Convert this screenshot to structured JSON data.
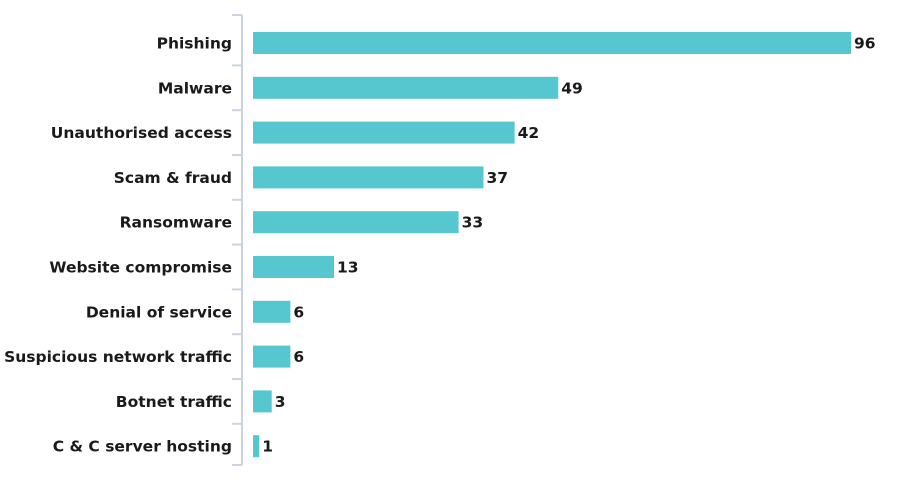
{
  "chart_data": {
    "type": "bar",
    "orientation": "horizontal",
    "title": "",
    "xlabel": "",
    "ylabel": "",
    "categories": [
      "Phishing",
      "Malware",
      "Unauthorised access",
      "Scam & fraud",
      "Ransomware",
      "Website compromise",
      "Denial of service",
      "Suspicious network traffic",
      "Botnet traffic",
      "C & C server hosting"
    ],
    "values": [
      96,
      49,
      42,
      37,
      33,
      13,
      6,
      6,
      3,
      1
    ],
    "xlim": [
      0,
      96
    ],
    "grid": false,
    "legend": "none",
    "data_labels": true,
    "bar_color": "#56c6cf"
  }
}
